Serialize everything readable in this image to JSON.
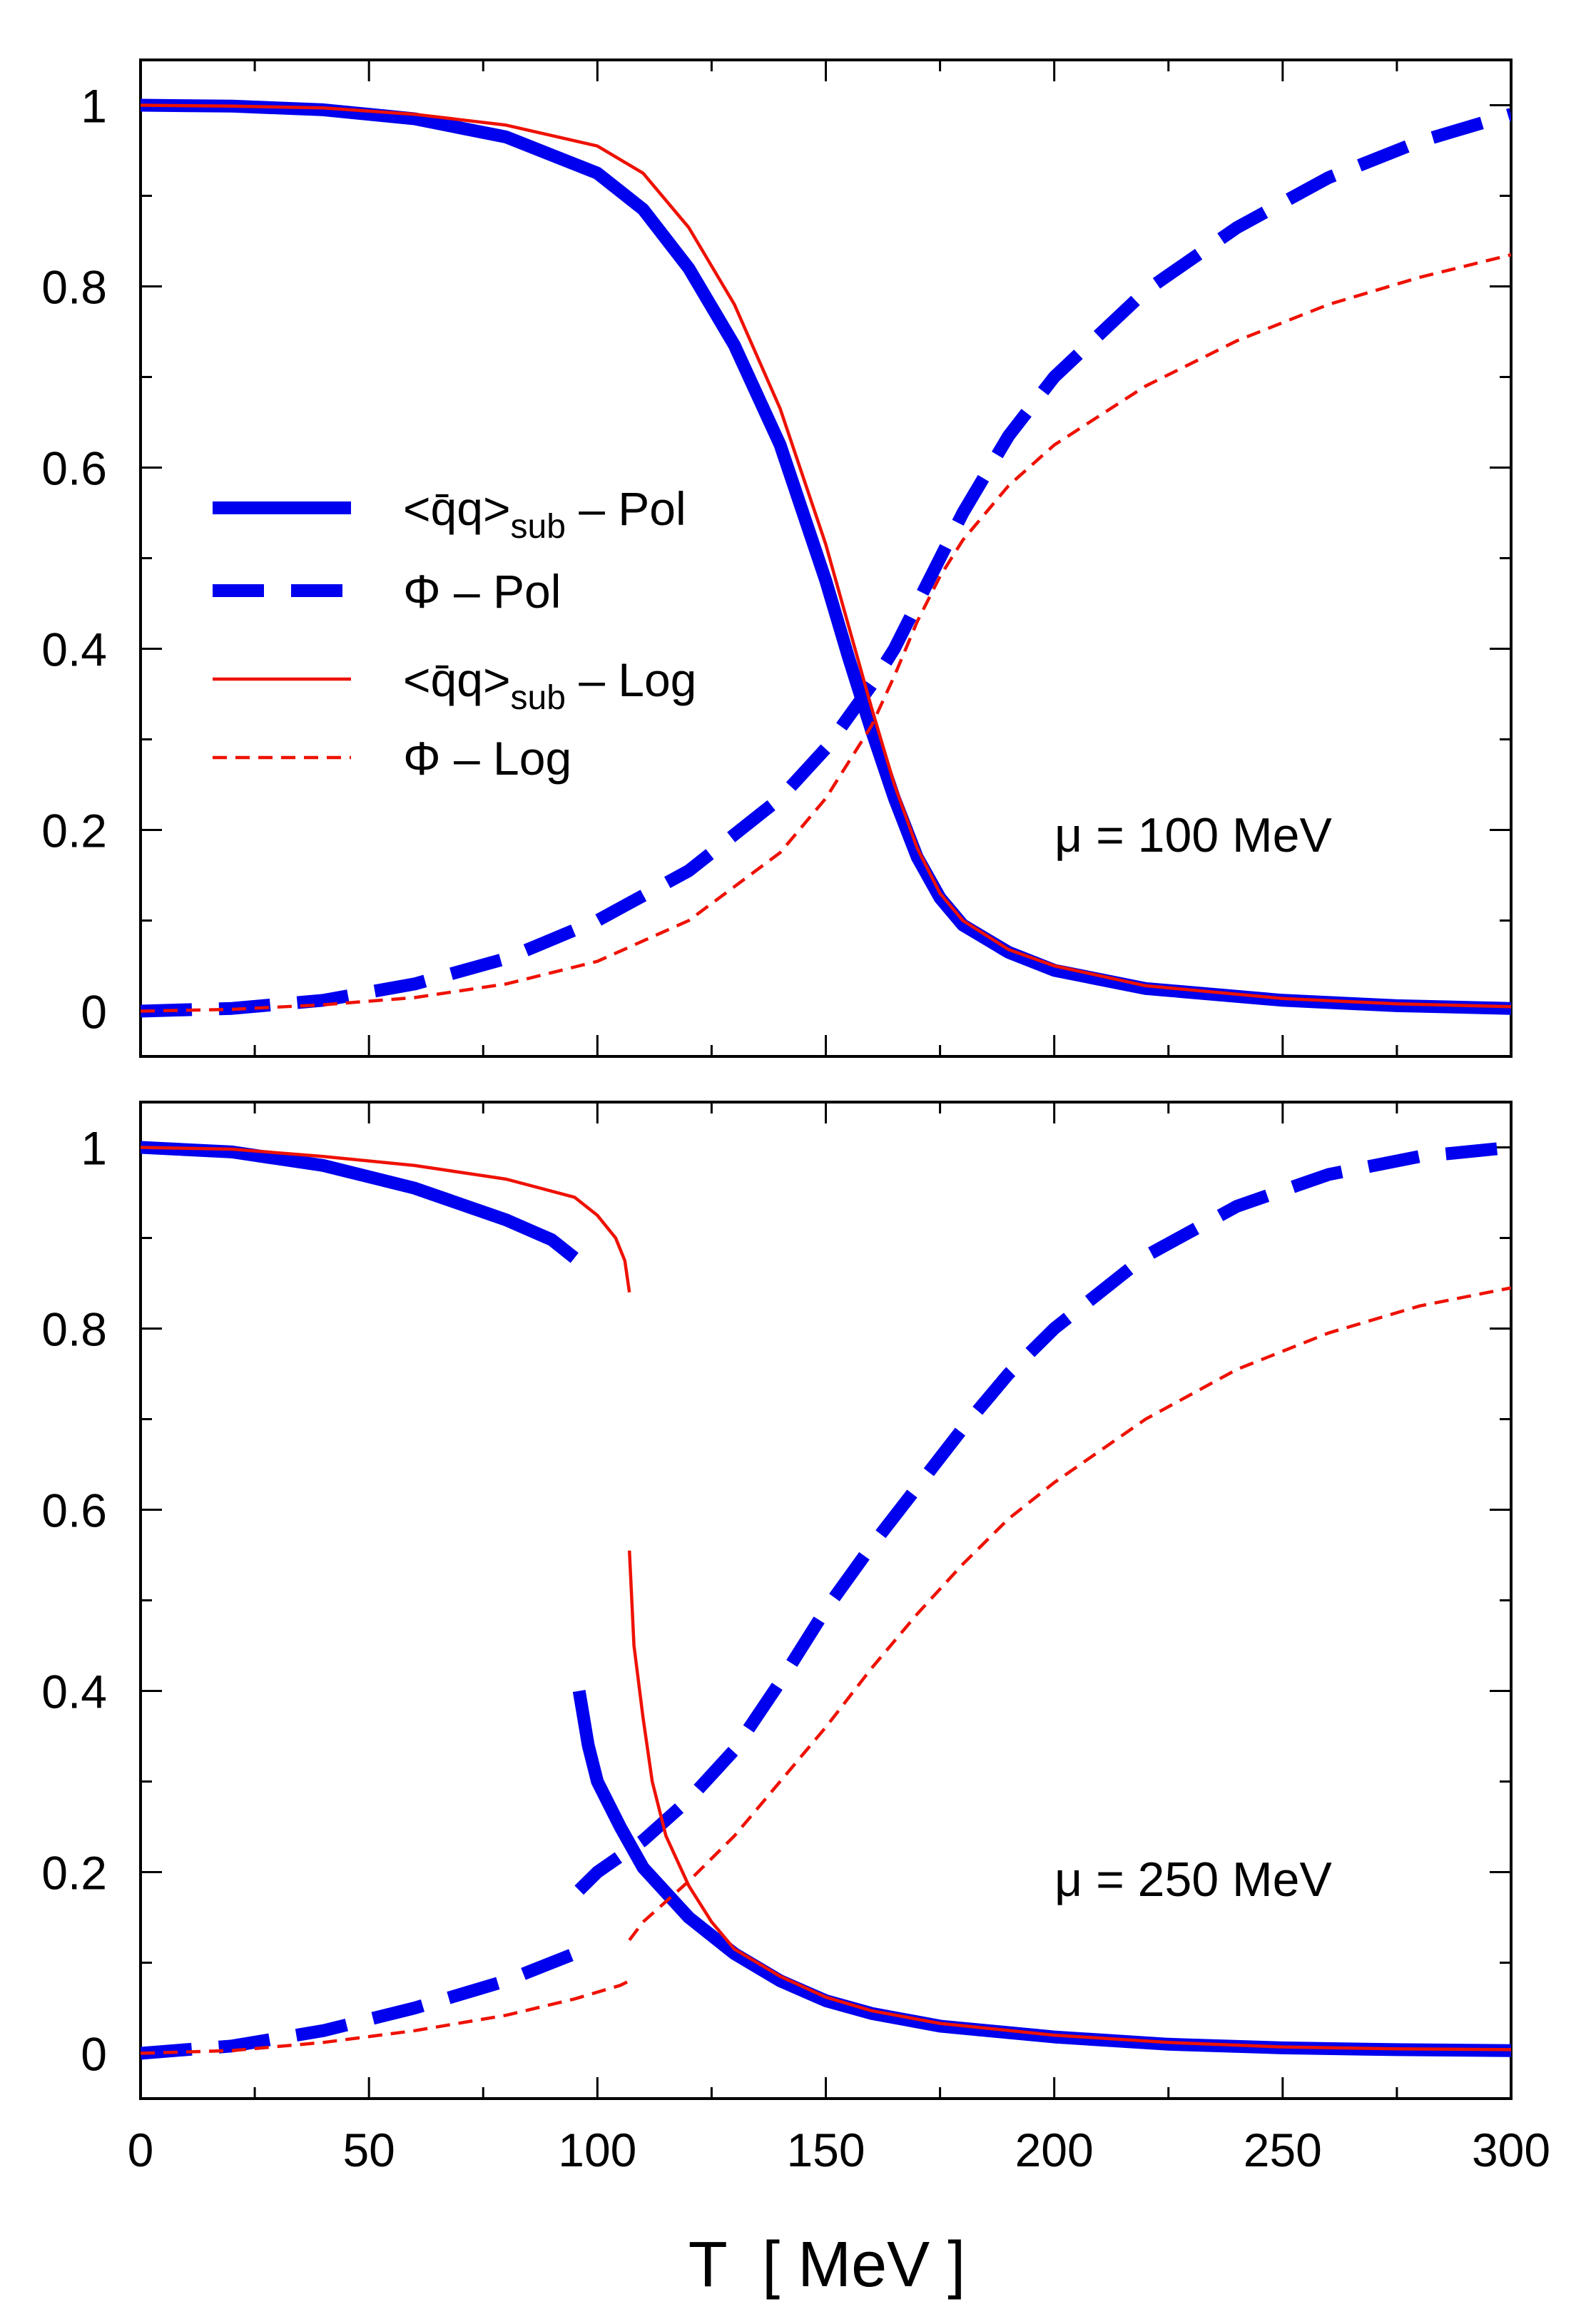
{
  "chart_data": {
    "shared": {
      "type": "line",
      "xlabel": "T  [ MeV ]",
      "xlim": [
        0,
        300
      ],
      "ylim": [
        -0.05,
        1.05
      ],
      "xticks": [
        "0",
        "50",
        "100",
        "150",
        "200",
        "250",
        "300"
      ],
      "yticks": [
        "0",
        "0.2",
        "0.4",
        "0.6",
        "0.8",
        "1"
      ],
      "styles": {
        "Pol_cond": {
          "color": "#0000ee",
          "dash": "none",
          "weight": "thick"
        },
        "Pol_phi": {
          "color": "#0000ee",
          "dash": "long",
          "weight": "thick"
        },
        "Log_cond": {
          "color": "#ee1100",
          "dash": "none",
          "weight": "thin"
        },
        "Log_phi": {
          "color": "#ee1100",
          "dash": "short",
          "weight": "thin"
        }
      }
    },
    "legend": {
      "placement": "upper-left of top panel",
      "entries": [
        {
          "key": "Pol_cond",
          "prefix": "<q̄q>",
          "sub": "sub",
          "suffix": " – Pol"
        },
        {
          "key": "Pol_phi",
          "prefix": "Φ – Pol",
          "sub": "",
          "suffix": ""
        },
        {
          "key": "Log_cond",
          "prefix": "<q̄q>",
          "sub": "sub",
          "suffix": " – Log"
        },
        {
          "key": "Log_phi",
          "prefix": "Φ – Log",
          "sub": "",
          "suffix": ""
        }
      ]
    },
    "panels": [
      {
        "annotation": "μ = 100 MeV",
        "series": [
          {
            "key": "Pol_cond",
            "segments": [
              [
                [
                  0,
                  1.0
                ],
                [
                  20,
                  0.999
                ],
                [
                  40,
                  0.995
                ],
                [
                  60,
                  0.985
                ],
                [
                  80,
                  0.965
                ],
                [
                  100,
                  0.925
                ],
                [
                  110,
                  0.885
                ],
                [
                  120,
                  0.82
                ],
                [
                  130,
                  0.735
                ],
                [
                  140,
                  0.625
                ],
                [
                  150,
                  0.475
                ],
                [
                  155,
                  0.39
                ],
                [
                  160,
                  0.31
                ],
                [
                  165,
                  0.235
                ],
                [
                  170,
                  0.17
                ],
                [
                  175,
                  0.125
                ],
                [
                  180,
                  0.095
                ],
                [
                  190,
                  0.065
                ],
                [
                  200,
                  0.045
                ],
                [
                  220,
                  0.025
                ],
                [
                  250,
                  0.012
                ],
                [
                  275,
                  0.006
                ],
                [
                  300,
                  0.003
                ]
              ]
            ]
          },
          {
            "key": "Pol_phi",
            "segments": [
              [
                [
                  0,
                  0.0
                ],
                [
                  20,
                  0.003
                ],
                [
                  40,
                  0.012
                ],
                [
                  60,
                  0.03
                ],
                [
                  80,
                  0.058
                ],
                [
                  100,
                  0.1
                ],
                [
                  120,
                  0.155
                ],
                [
                  140,
                  0.235
                ],
                [
                  150,
                  0.29
                ],
                [
                  160,
                  0.36
                ],
                [
                  165,
                  0.4
                ],
                [
                  170,
                  0.45
                ],
                [
                  175,
                  0.5
                ],
                [
                  180,
                  0.55
                ],
                [
                  190,
                  0.635
                ],
                [
                  200,
                  0.7
                ],
                [
                  220,
                  0.795
                ],
                [
                  240,
                  0.865
                ],
                [
                  260,
                  0.92
                ],
                [
                  280,
                  0.96
                ],
                [
                  300,
                  0.99
                ]
              ]
            ]
          },
          {
            "key": "Log_cond",
            "segments": [
              [
                [
                  0,
                  1.0
                ],
                [
                  20,
                  0.999
                ],
                [
                  40,
                  0.997
                ],
                [
                  60,
                  0.99
                ],
                [
                  80,
                  0.978
                ],
                [
                  100,
                  0.955
                ],
                [
                  110,
                  0.925
                ],
                [
                  120,
                  0.865
                ],
                [
                  130,
                  0.78
                ],
                [
                  140,
                  0.665
                ],
                [
                  150,
                  0.515
                ],
                [
                  155,
                  0.425
                ],
                [
                  160,
                  0.335
                ],
                [
                  165,
                  0.25
                ],
                [
                  170,
                  0.18
                ],
                [
                  175,
                  0.13
                ],
                [
                  180,
                  0.1
                ],
                [
                  190,
                  0.068
                ],
                [
                  200,
                  0.05
                ],
                [
                  220,
                  0.028
                ],
                [
                  250,
                  0.014
                ],
                [
                  275,
                  0.008
                ],
                [
                  300,
                  0.005
                ]
              ]
            ]
          },
          {
            "key": "Log_phi",
            "segments": [
              [
                [
                  0,
                  0.0
                ],
                [
                  20,
                  0.002
                ],
                [
                  40,
                  0.007
                ],
                [
                  60,
                  0.015
                ],
                [
                  80,
                  0.03
                ],
                [
                  100,
                  0.055
                ],
                [
                  120,
                  0.1
                ],
                [
                  140,
                  0.175
                ],
                [
                  150,
                  0.235
                ],
                [
                  160,
                  0.315
                ],
                [
                  165,
                  0.37
                ],
                [
                  170,
                  0.43
                ],
                [
                  175,
                  0.48
                ],
                [
                  180,
                  0.52
                ],
                [
                  190,
                  0.58
                ],
                [
                  200,
                  0.625
                ],
                [
                  220,
                  0.69
                ],
                [
                  240,
                  0.74
                ],
                [
                  260,
                  0.78
                ],
                [
                  280,
                  0.81
                ],
                [
                  300,
                  0.835
                ]
              ]
            ]
          }
        ]
      },
      {
        "annotation": "μ = 250 MeV",
        "series": [
          {
            "key": "Pol_cond",
            "segments": [
              [
                [
                  0,
                  1.0
                ],
                [
                  20,
                  0.995
                ],
                [
                  40,
                  0.98
                ],
                [
                  60,
                  0.955
                ],
                [
                  80,
                  0.92
                ],
                [
                  90,
                  0.898
                ],
                [
                  95,
                  0.878
                ]
              ],
              [
                [
                  96,
                  0.4
                ],
                [
                  98,
                  0.34
                ],
                [
                  100,
                  0.3
                ],
                [
                  105,
                  0.25
                ],
                [
                  110,
                  0.205
                ],
                [
                  120,
                  0.15
                ],
                [
                  130,
                  0.11
                ],
                [
                  140,
                  0.08
                ],
                [
                  150,
                  0.058
                ],
                [
                  160,
                  0.044
                ],
                [
                  175,
                  0.03
                ],
                [
                  200,
                  0.018
                ],
                [
                  225,
                  0.01
                ],
                [
                  250,
                  0.006
                ],
                [
                  275,
                  0.004
                ],
                [
                  300,
                  0.003
                ]
              ]
            ]
          },
          {
            "key": "Pol_phi",
            "segments": [
              [
                [
                  0,
                  0.0
                ],
                [
                  20,
                  0.008
                ],
                [
                  40,
                  0.025
                ],
                [
                  60,
                  0.05
                ],
                [
                  80,
                  0.08
                ],
                [
                  95,
                  0.11
                ]
              ],
              [
                [
                  96,
                  0.18
                ],
                [
                  100,
                  0.2
                ],
                [
                  110,
                  0.235
                ],
                [
                  120,
                  0.28
                ],
                [
                  130,
                  0.335
                ],
                [
                  140,
                  0.41
                ],
                [
                  150,
                  0.49
                ],
                [
                  160,
                  0.56
                ],
                [
                  170,
                  0.625
                ],
                [
                  180,
                  0.69
                ],
                [
                  190,
                  0.75
                ],
                [
                  200,
                  0.8
                ],
                [
                  220,
                  0.88
                ],
                [
                  240,
                  0.935
                ],
                [
                  260,
                  0.97
                ],
                [
                  280,
                  0.99
                ],
                [
                  300,
                  1.0
                ]
              ]
            ]
          },
          {
            "key": "Log_cond",
            "segments": [
              [
                [
                  0,
                  1.0
                ],
                [
                  20,
                  0.998
                ],
                [
                  40,
                  0.99
                ],
                [
                  60,
                  0.98
                ],
                [
                  80,
                  0.965
                ],
                [
                  95,
                  0.945
                ],
                [
                  100,
                  0.925
                ],
                [
                  104,
                  0.9
                ],
                [
                  106,
                  0.875
                ],
                [
                  107,
                  0.84
                ]
              ],
              [
                [
                  107,
                  0.555
                ],
                [
                  108,
                  0.45
                ],
                [
                  110,
                  0.37
                ],
                [
                  112,
                  0.3
                ],
                [
                  115,
                  0.24
                ],
                [
                  120,
                  0.185
                ],
                [
                  125,
                  0.145
                ],
                [
                  130,
                  0.115
                ],
                [
                  140,
                  0.085
                ],
                [
                  150,
                  0.062
                ],
                [
                  160,
                  0.047
                ],
                [
                  175,
                  0.033
                ],
                [
                  200,
                  0.02
                ],
                [
                  225,
                  0.012
                ],
                [
                  250,
                  0.007
                ],
                [
                  275,
                  0.005
                ],
                [
                  300,
                  0.004
                ]
              ]
            ]
          },
          {
            "key": "Log_phi",
            "segments": [
              [
                [
                  0,
                  0.0
                ],
                [
                  20,
                  0.003
                ],
                [
                  40,
                  0.012
                ],
                [
                  60,
                  0.025
                ],
                [
                  80,
                  0.042
                ],
                [
                  95,
                  0.06
                ],
                [
                  105,
                  0.075
                ],
                [
                  107,
                  0.08
                ]
              ],
              [
                [
                  107,
                  0.125
                ],
                [
                  110,
                  0.145
                ],
                [
                  120,
                  0.19
                ],
                [
                  130,
                  0.24
                ],
                [
                  140,
                  0.3
                ],
                [
                  150,
                  0.36
                ],
                [
                  160,
                  0.425
                ],
                [
                  170,
                  0.485
                ],
                [
                  180,
                  0.54
                ],
                [
                  190,
                  0.59
                ],
                [
                  200,
                  0.63
                ],
                [
                  220,
                  0.7
                ],
                [
                  240,
                  0.755
                ],
                [
                  260,
                  0.795
                ],
                [
                  280,
                  0.825
                ],
                [
                  300,
                  0.845
                ]
              ]
            ]
          }
        ]
      }
    ]
  }
}
